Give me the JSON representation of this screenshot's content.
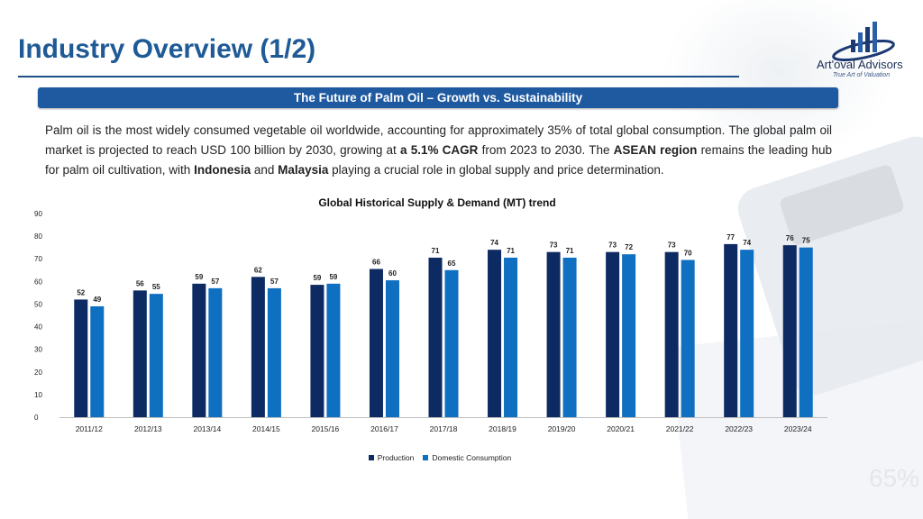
{
  "page": {
    "title": "Industry Overview (1/2)"
  },
  "logo": {
    "name": "Art'oval Advisors",
    "tagline": "True Art of Valuation",
    "icon": "bar-growth-logo-icon"
  },
  "banner": {
    "text": "The Future of Palm Oil – Growth vs. Sustainability"
  },
  "paragraph": {
    "t1": "Palm oil is the most widely consumed vegetable oil worldwide, accounting for approximately 35% of total global consumption. The global palm oil market is projected to reach USD 100 billion by 2030, growing at ",
    "b1": "a 5.1% CAGR",
    "t2": " from 2023 to 2030. The ",
    "b2": "ASEAN region",
    "t3": " remains the leading hub for palm oil cultivation, with ",
    "b3": "Indonesia",
    "t4": " and ",
    "b4": "Malaysia",
    "t5": " playing a crucial role in global supply and price determination."
  },
  "background_text": "65%",
  "chart_data": {
    "type": "bar",
    "title": "Global Historical Supply & Demand (MT) trend",
    "xlabel": "",
    "ylabel": "",
    "ylim": [
      0,
      90
    ],
    "yticks": [
      0,
      10,
      20,
      30,
      40,
      50,
      60,
      70,
      80,
      90
    ],
    "grid": false,
    "legend_position": "bottom",
    "categories": [
      "2011/12",
      "2012/13",
      "2013/14",
      "2014/15",
      "2015/16",
      "2016/17",
      "2017/18",
      "2018/19",
      "2019/20",
      "2020/21",
      "2021/22",
      "2022/23",
      "2023/24"
    ],
    "series": [
      {
        "name": "Production",
        "color": "#0e2a63",
        "values": [
          52,
          56,
          59,
          62,
          58.5,
          65.5,
          70.5,
          74,
          73,
          73,
          73,
          76.5,
          76
        ],
        "labels": [
          "52",
          "56",
          "59",
          "62",
          "59",
          "66",
          "71",
          "74",
          "73",
          "73",
          "73",
          "77",
          "76"
        ]
      },
      {
        "name": "Domestic Consumption",
        "color": "#0f6fc0",
        "values": [
          49,
          54.5,
          57,
          57,
          59,
          60.5,
          65,
          70.5,
          70.5,
          72,
          69.5,
          74,
          75
        ],
        "labels": [
          "49",
          "55",
          "57",
          "57",
          "59",
          "60",
          "65",
          "71",
          "71",
          "72",
          "70",
          "74",
          "75"
        ]
      }
    ]
  }
}
